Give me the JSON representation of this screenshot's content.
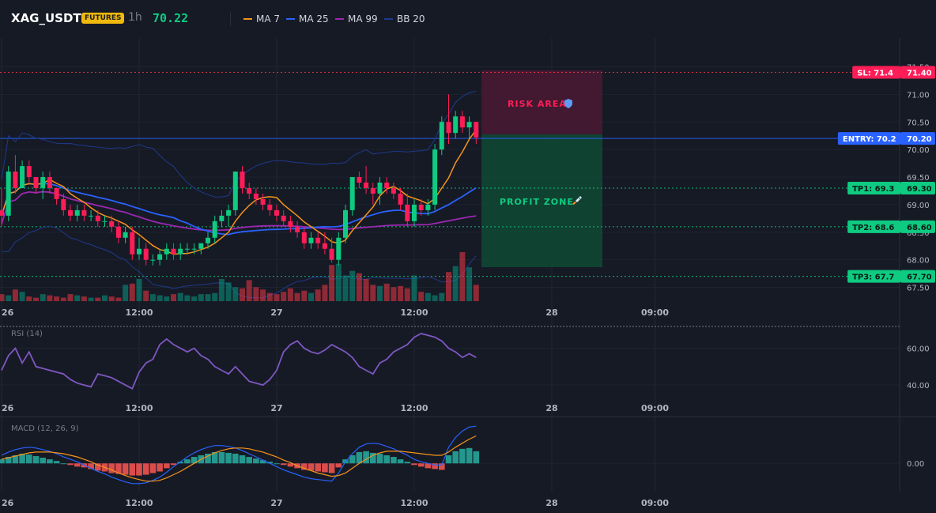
{
  "header": {
    "symbol": "XAG_USDT",
    "badge": "FUTURES",
    "interval": "1h",
    "price": "70.22",
    "legend": [
      {
        "label": "MA 7",
        "color": "#f7931a"
      },
      {
        "label": "MA 25",
        "color": "#2962ff"
      },
      {
        "label": "MA 99",
        "color": "#9c27b0"
      },
      {
        "label": "BB 20",
        "color": "#1e3a8a"
      }
    ]
  },
  "levels": [
    {
      "label": "SL: 71.4",
      "value": "71.40",
      "price": 71.4,
      "color": "#ff1d58",
      "line": "#f23645",
      "style": "dotted"
    },
    {
      "label": "ENTRY: 70.2",
      "value": "70.20",
      "price": 70.2,
      "color": "#2962ff",
      "line": "#2962ff",
      "style": "solid"
    },
    {
      "label": "TP1: 69.3",
      "value": "69.30",
      "price": 69.3,
      "color": "#0ecb81",
      "line": "#0ecb81",
      "style": "dotted"
    },
    {
      "label": "TP2: 68.6",
      "value": "68.60",
      "price": 68.6,
      "color": "#0ecb81",
      "line": "#0ecb81",
      "style": "dotted"
    },
    {
      "label": "TP3: 67.7",
      "value": "67.70",
      "price": 67.7,
      "color": "#0ecb81",
      "line": "#0ecb81",
      "style": "dotted"
    }
  ],
  "zones": {
    "risk": {
      "label": "RISK AREA",
      "icon": "shield-icon",
      "color": "#ff1d58"
    },
    "profit": {
      "label": "PROFIT ZONE",
      "icon": "rocket-icon",
      "color": "#0ecb81"
    }
  },
  "chart_data": [
    {
      "type": "candlestick",
      "name": "Price",
      "ylim": [
        67.25,
        71.55
      ],
      "ytick_labels": [
        "71.50",
        "71.00",
        "70.50",
        "70.00",
        "69.50",
        "69.00",
        "68.50",
        "68.00",
        "67.50"
      ],
      "ytick_values": [
        71.5,
        71.0,
        70.5,
        70.0,
        69.5,
        69.0,
        68.5,
        68.0,
        67.5
      ],
      "xtick_labels": [
        "26",
        "12:00",
        "27",
        "12:00",
        "28",
        "09:00"
      ],
      "xtick_index": [
        0,
        20,
        40,
        60,
        80,
        95
      ],
      "ohlc": [
        [
          68.9,
          69.3,
          68.6,
          68.8
        ],
        [
          68.8,
          69.7,
          68.7,
          69.6
        ],
        [
          69.6,
          69.9,
          69.2,
          69.3
        ],
        [
          69.3,
          69.8,
          69.3,
          69.7
        ],
        [
          69.7,
          69.8,
          69.4,
          69.5
        ],
        [
          69.5,
          69.5,
          69.2,
          69.3
        ],
        [
          69.3,
          69.6,
          69.1,
          69.5
        ],
        [
          69.5,
          69.6,
          69.2,
          69.3
        ],
        [
          69.3,
          69.3,
          69.0,
          69.1
        ],
        [
          69.1,
          69.2,
          68.8,
          68.9
        ],
        [
          68.9,
          69.0,
          68.7,
          68.8
        ],
        [
          68.8,
          69.0,
          68.7,
          68.9
        ],
        [
          68.9,
          69.0,
          68.7,
          68.8
        ],
        [
          68.8,
          68.9,
          68.7,
          68.8
        ],
        [
          68.8,
          68.9,
          68.6,
          68.7
        ],
        [
          68.7,
          68.8,
          68.6,
          68.7
        ],
        [
          68.7,
          68.8,
          68.5,
          68.6
        ],
        [
          68.6,
          68.7,
          68.3,
          68.4
        ],
        [
          68.4,
          68.6,
          68.3,
          68.5
        ],
        [
          68.5,
          68.6,
          68.0,
          68.1
        ],
        [
          68.1,
          68.4,
          68.0,
          68.2
        ],
        [
          68.2,
          68.3,
          67.9,
          68.0
        ],
        [
          68.0,
          68.1,
          67.9,
          68.0
        ],
        [
          68.0,
          68.2,
          67.9,
          68.1
        ],
        [
          68.1,
          68.3,
          68.0,
          68.2
        ],
        [
          68.2,
          68.3,
          68.0,
          68.1
        ],
        [
          68.1,
          68.3,
          68.0,
          68.2
        ],
        [
          68.2,
          68.3,
          68.1,
          68.2
        ],
        [
          68.2,
          68.3,
          68.1,
          68.2
        ],
        [
          68.2,
          68.3,
          68.1,
          68.3
        ],
        [
          68.3,
          68.5,
          68.2,
          68.4
        ],
        [
          68.4,
          68.8,
          68.3,
          68.7
        ],
        [
          68.7,
          68.9,
          68.6,
          68.8
        ],
        [
          68.8,
          69.0,
          68.6,
          68.9
        ],
        [
          68.9,
          69.6,
          68.8,
          69.6
        ],
        [
          69.6,
          69.7,
          69.2,
          69.3
        ],
        [
          69.3,
          69.4,
          69.1,
          69.2
        ],
        [
          69.2,
          69.3,
          69.0,
          69.1
        ],
        [
          69.1,
          69.2,
          68.9,
          69.0
        ],
        [
          69.0,
          69.1,
          68.8,
          68.9
        ],
        [
          68.9,
          69.0,
          68.7,
          68.8
        ],
        [
          68.8,
          68.9,
          68.6,
          68.7
        ],
        [
          68.7,
          68.8,
          68.5,
          68.6
        ],
        [
          68.6,
          68.7,
          68.4,
          68.5
        ],
        [
          68.5,
          68.6,
          68.2,
          68.3
        ],
        [
          68.3,
          68.5,
          68.2,
          68.4
        ],
        [
          68.4,
          68.5,
          68.2,
          68.3
        ],
        [
          68.3,
          68.5,
          68.1,
          68.2
        ],
        [
          68.2,
          68.4,
          67.95,
          68.0
        ],
        [
          68.0,
          68.5,
          67.9,
          68.4
        ],
        [
          68.4,
          69.0,
          68.3,
          68.9
        ],
        [
          68.9,
          69.5,
          68.8,
          69.5
        ],
        [
          69.5,
          69.6,
          69.3,
          69.4
        ],
        [
          69.4,
          69.7,
          69.2,
          69.3
        ],
        [
          69.3,
          69.4,
          69.0,
          69.2
        ],
        [
          69.2,
          69.5,
          69.0,
          69.4
        ],
        [
          69.4,
          69.5,
          69.2,
          69.3
        ],
        [
          69.3,
          69.4,
          69.1,
          69.2
        ],
        [
          69.2,
          69.3,
          68.9,
          69.0
        ],
        [
          69.0,
          69.2,
          68.6,
          68.7
        ],
        [
          68.7,
          69.1,
          68.6,
          69.0
        ],
        [
          69.0,
          69.1,
          68.8,
          68.9
        ],
        [
          68.9,
          69.1,
          68.8,
          69.0
        ],
        [
          69.0,
          70.1,
          68.9,
          70.0
        ],
        [
          70.0,
          70.6,
          69.9,
          70.5
        ],
        [
          70.5,
          71.0,
          70.1,
          70.3
        ],
        [
          70.3,
          70.7,
          70.2,
          70.6
        ],
        [
          70.6,
          70.7,
          70.3,
          70.4
        ],
        [
          70.4,
          70.6,
          70.2,
          70.5
        ],
        [
          70.5,
          70.5,
          70.1,
          70.22
        ]
      ],
      "volume": [
        12,
        10,
        20,
        16,
        8,
        6,
        12,
        10,
        8,
        6,
        12,
        10,
        8,
        6,
        6,
        10,
        8,
        6,
        28,
        30,
        38,
        18,
        12,
        10,
        8,
        12,
        14,
        10,
        8,
        12,
        12,
        14,
        38,
        32,
        24,
        22,
        36,
        24,
        20,
        14,
        12,
        16,
        22,
        14,
        18,
        14,
        20,
        28,
        62,
        64,
        44,
        52,
        48,
        38,
        28,
        26,
        30,
        24,
        26,
        22,
        44,
        16,
        14,
        10,
        14,
        50,
        60,
        84,
        58,
        28
      ]
    },
    {
      "type": "line",
      "name": "RSI (14)",
      "ylim": [
        34,
        71
      ],
      "ytick_labels": [
        "60.00",
        "40.00"
      ],
      "ytick_values": [
        60,
        40
      ],
      "values": [
        48,
        56,
        60,
        52,
        58,
        50,
        49,
        48,
        47,
        46,
        43,
        41,
        40,
        39,
        46,
        45,
        44,
        42,
        40,
        38,
        47,
        52,
        54,
        62,
        65,
        62,
        60,
        58,
        60,
        56,
        54,
        50,
        48,
        46,
        50,
        46,
        42,
        41,
        40,
        43,
        48,
        58,
        62,
        64,
        60,
        58,
        57,
        59,
        62,
        60,
        58,
        55,
        50,
        48,
        46,
        52,
        54,
        58,
        60,
        62,
        66,
        68,
        67,
        66,
        64,
        60,
        58,
        55,
        57,
        55
      ]
    },
    {
      "type": "bar",
      "name": "MACD (12, 26, 9)",
      "ylim": [
        -0.35,
        0.55
      ],
      "ytick_labels": [
        "0.00"
      ],
      "ytick_values": [
        0
      ],
      "histogram": [
        0.05,
        0.08,
        0.1,
        0.12,
        0.11,
        0.09,
        0.07,
        0.05,
        0.03,
        0.0,
        -0.02,
        -0.04,
        -0.05,
        -0.07,
        -0.09,
        -0.1,
        -0.12,
        -0.13,
        -0.14,
        -0.15,
        -0.15,
        -0.14,
        -0.12,
        -0.1,
        -0.06,
        -0.02,
        0.02,
        0.05,
        0.08,
        0.1,
        0.12,
        0.14,
        0.14,
        0.13,
        0.12,
        0.1,
        0.08,
        0.06,
        0.04,
        0.02,
        0.0,
        -0.02,
        -0.04,
        -0.06,
        -0.08,
        -0.09,
        -0.1,
        -0.11,
        -0.12,
        -0.05,
        0.05,
        0.1,
        0.14,
        0.15,
        0.13,
        0.12,
        0.1,
        0.08,
        0.05,
        0.02,
        -0.02,
        -0.04,
        -0.06,
        -0.07,
        -0.08,
        0.1,
        0.15,
        0.18,
        0.19,
        0.15
      ],
      "macd": [
        0.1,
        0.14,
        0.17,
        0.19,
        0.2,
        0.19,
        0.17,
        0.15,
        0.12,
        0.08,
        0.05,
        0.02,
        -0.02,
        -0.06,
        -0.1,
        -0.13,
        -0.17,
        -0.2,
        -0.23,
        -0.25,
        -0.25,
        -0.24,
        -0.21,
        -0.17,
        -0.11,
        -0.04,
        0.02,
        0.08,
        0.13,
        0.17,
        0.2,
        0.22,
        0.22,
        0.21,
        0.19,
        0.16,
        0.12,
        0.08,
        0.04,
        0.0,
        -0.04,
        -0.08,
        -0.11,
        -0.14,
        -0.17,
        -0.19,
        -0.2,
        -0.21,
        -0.22,
        -0.12,
        0.02,
        0.12,
        0.2,
        0.24,
        0.25,
        0.24,
        0.21,
        0.18,
        0.14,
        0.1,
        0.05,
        0.02,
        0.0,
        -0.02,
        -0.02,
        0.2,
        0.32,
        0.4,
        0.45,
        0.46
      ],
      "signal": [
        0.05,
        0.07,
        0.09,
        0.11,
        0.13,
        0.14,
        0.14,
        0.14,
        0.13,
        0.12,
        0.1,
        0.08,
        0.05,
        0.02,
        -0.02,
        -0.05,
        -0.08,
        -0.12,
        -0.15,
        -0.18,
        -0.2,
        -0.22,
        -0.22,
        -0.21,
        -0.18,
        -0.14,
        -0.1,
        -0.05,
        0.0,
        0.05,
        0.09,
        0.13,
        0.16,
        0.18,
        0.19,
        0.19,
        0.18,
        0.16,
        0.14,
        0.11,
        0.08,
        0.04,
        0.01,
        -0.03,
        -0.06,
        -0.09,
        -0.12,
        -0.14,
        -0.16,
        -0.15,
        -0.12,
        -0.06,
        0.0,
        0.05,
        0.1,
        0.13,
        0.15,
        0.15,
        0.15,
        0.14,
        0.13,
        0.12,
        0.11,
        0.1,
        0.1,
        0.14,
        0.2,
        0.25,
        0.3,
        0.34
      ]
    }
  ]
}
